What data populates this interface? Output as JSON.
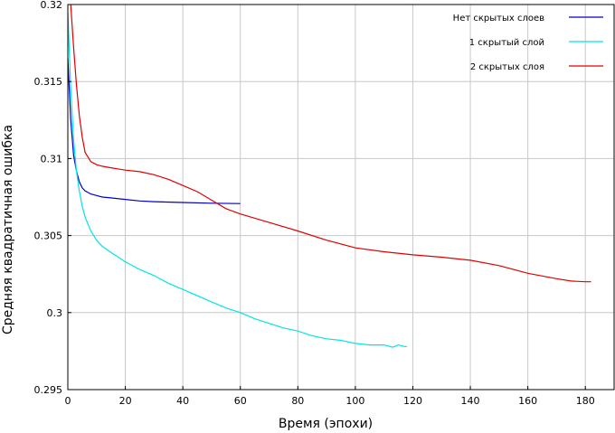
{
  "chart_data": {
    "type": "line",
    "title": "",
    "xlabel": "Время (эпохи)",
    "ylabel": "Средняя квадратичная ошибка",
    "xlim": [
      0,
      190
    ],
    "ylim": [
      0.295,
      0.32
    ],
    "xticks": [
      0,
      20,
      40,
      60,
      80,
      100,
      120,
      140,
      160,
      180
    ],
    "yticks": [
      0.295,
      0.3,
      0.305,
      0.31,
      0.315,
      0.32
    ],
    "ytick_labels": [
      "0.295",
      "0.3",
      "0.305",
      "0.31",
      "0.315",
      "0.32"
    ],
    "grid": true,
    "legend_position": "top-right",
    "series": [
      {
        "name": "Нет скрытых слоев",
        "color": "#0000cc",
        "x": [
          0,
          1,
          2,
          3,
          4,
          5,
          6,
          8,
          10,
          12,
          15,
          20,
          25,
          30,
          40,
          50,
          60
        ],
        "y": [
          0.3165,
          0.3125,
          0.3102,
          0.3092,
          0.3085,
          0.3081,
          0.3079,
          0.3077,
          0.3076,
          0.3075,
          0.30745,
          0.30735,
          0.30725,
          0.3072,
          0.30715,
          0.3071,
          0.30708
        ]
      },
      {
        "name": "1 скрытый слой",
        "color": "#00e5e5",
        "x": [
          0,
          1,
          2,
          3,
          4,
          5,
          6,
          8,
          10,
          12,
          15,
          20,
          25,
          30,
          35,
          40,
          45,
          50,
          55,
          60,
          65,
          70,
          75,
          80,
          85,
          90,
          95,
          100,
          105,
          110,
          113,
          115,
          117,
          118
        ],
        "y": [
          0.3195,
          0.3145,
          0.3112,
          0.3092,
          0.3079,
          0.3069,
          0.3062,
          0.3053,
          0.3047,
          0.3043,
          0.3039,
          0.3033,
          0.3028,
          0.3024,
          0.3019,
          0.3015,
          0.3011,
          0.3007,
          0.3003,
          0.3,
          0.2996,
          0.2993,
          0.299,
          0.2988,
          0.2985,
          0.2983,
          0.2982,
          0.298,
          0.2979,
          0.2979,
          0.29775,
          0.2979,
          0.2978,
          0.2978
        ]
      },
      {
        "name": "2 скрытых слоя",
        "color": "#e00000",
        "x": [
          1,
          2,
          3,
          4,
          5,
          6,
          7,
          8,
          10,
          12,
          15,
          20,
          25,
          30,
          35,
          40,
          45,
          50,
          55,
          60,
          70,
          80,
          90,
          100,
          110,
          120,
          130,
          140,
          150,
          160,
          170,
          175,
          180,
          182
        ],
        "y": [
          0.32,
          0.3172,
          0.3148,
          0.3128,
          0.3114,
          0.3104,
          0.3101,
          0.3098,
          0.3096,
          0.3095,
          0.3094,
          0.30925,
          0.30915,
          0.30895,
          0.30865,
          0.30825,
          0.30785,
          0.3073,
          0.30675,
          0.3064,
          0.30585,
          0.3053,
          0.3047,
          0.3042,
          0.30395,
          0.30375,
          0.3036,
          0.3034,
          0.30305,
          0.30255,
          0.3022,
          0.30205,
          0.302,
          0.302
        ]
      }
    ]
  }
}
